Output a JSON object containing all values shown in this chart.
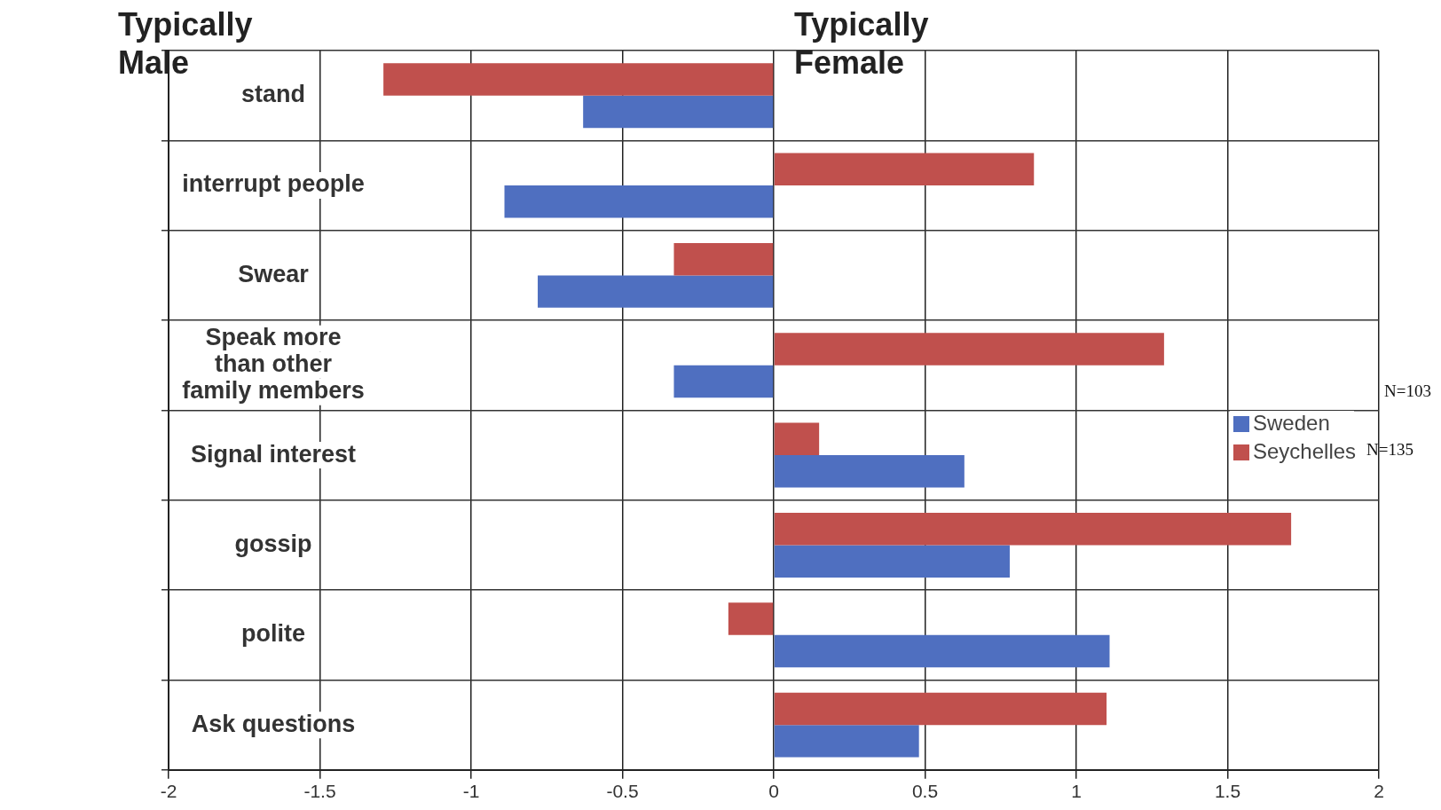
{
  "chart_data": {
    "type": "bar",
    "orientation": "horizontal",
    "categories": [
      "stand",
      "interrupt people",
      "Swear",
      "Speak more than other family members",
      "Signal interest",
      "gossip",
      "polite",
      "Ask questions"
    ],
    "series": [
      {
        "name": "Seychelles",
        "color": "#c0504d",
        "values": [
          -1.29,
          0.86,
          -0.33,
          1.29,
          0.15,
          1.71,
          -0.15,
          1.1
        ]
      },
      {
        "name": "Sweden",
        "color": "#4f6fc0",
        "values": [
          -0.63,
          -0.89,
          -0.78,
          -0.33,
          0.63,
          0.78,
          1.11,
          0.48
        ]
      }
    ],
    "xlim": [
      -2,
      2
    ],
    "xticks": [
      -2,
      -1.5,
      -1,
      -0.5,
      0,
      0.5,
      1,
      1.5,
      2
    ],
    "grid": true,
    "legend": "right",
    "annotations": [
      "Typically Male",
      "Typically Female",
      "N=103",
      "N=135"
    ]
  }
}
